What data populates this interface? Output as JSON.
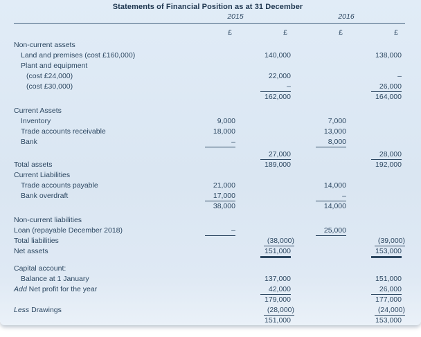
{
  "colors": {
    "panel_bg": "#dce8f4",
    "ink": "#2c4761",
    "ink_strong": "#1f3750",
    "rule": "#44617e"
  },
  "header": {
    "title": "Statements of Financial Position as at 31 December",
    "years": [
      "2015",
      "2016"
    ],
    "currency_symbol": "£",
    "column_roles": [
      "2015-inner",
      "2015-outer",
      "2016-inner",
      "2016-outer"
    ]
  },
  "table": {
    "rows": [
      {
        "t": "Non-current assets",
        "i": 0
      },
      {
        "t": "Land and premises (cost £160,000)",
        "i": 1,
        "c": [
          "",
          "140,000",
          "",
          "138,000"
        ]
      },
      {
        "t": "Plant and equipment",
        "i": 1
      },
      {
        "t": "(cost £24,000)",
        "i": 2,
        "c": [
          "",
          "22,000",
          "",
          "–"
        ]
      },
      {
        "t": "(cost £30,000)",
        "i": 2,
        "c": [
          "",
          "–",
          "",
          "26,000"
        ],
        "u": [
          "",
          "s",
          "",
          "s"
        ]
      },
      {
        "t": "",
        "c": [
          "",
          "162,000",
          "",
          "164,000"
        ]
      },
      {
        "t": "Current Assets",
        "i": 0,
        "gap": "sm"
      },
      {
        "t": "Inventory",
        "i": 1,
        "c": [
          "9,000",
          "",
          "7,000",
          ""
        ]
      },
      {
        "t": "Trade accounts receivable",
        "i": 1,
        "c": [
          "18,000",
          "",
          "13,000",
          ""
        ]
      },
      {
        "t": "Bank",
        "i": 1,
        "c": [
          "–",
          "",
          "8,000",
          ""
        ],
        "u": [
          "s",
          "",
          "s",
          ""
        ]
      },
      {
        "t": "",
        "c": [
          "",
          "27,000",
          "",
          "28,000"
        ],
        "u": [
          "",
          "s",
          "",
          "s"
        ],
        "gap": "xs"
      },
      {
        "t": "Total assets",
        "i": 0,
        "c": [
          "",
          "189,000",
          "",
          "192,000"
        ]
      },
      {
        "t": "Current Liabilities",
        "i": 0
      },
      {
        "t": "Trade accounts payable",
        "i": 1,
        "c": [
          "21,000",
          "",
          "14,000",
          ""
        ]
      },
      {
        "t": "Bank overdraft",
        "i": 1,
        "c": [
          "17,000",
          "",
          "–",
          ""
        ],
        "u": [
          "s",
          "",
          "s",
          ""
        ]
      },
      {
        "t": "",
        "c": [
          "38,000",
          "",
          "14,000",
          ""
        ]
      },
      {
        "t": "Non-current liabilities",
        "i": 0,
        "gap": "sm"
      },
      {
        "t": "Loan (repayable December 2018)",
        "i": 0,
        "c": [
          "–",
          "",
          "25,000",
          ""
        ],
        "u": [
          "s",
          "",
          "s",
          ""
        ]
      },
      {
        "t": "Total liabilities",
        "i": 0,
        "c": [
          "",
          "(38,000)",
          "",
          "(39,000)"
        ],
        "u": [
          "",
          "s",
          "",
          "s"
        ]
      },
      {
        "t": "Net assets",
        "i": 0,
        "c": [
          "",
          "151,000",
          "",
          "153,000"
        ],
        "u": [
          "",
          "d",
          "",
          "d"
        ]
      },
      {
        "t": "Capital account:",
        "i": 0,
        "gap": "md"
      },
      {
        "t": "Balance at 1 January",
        "i": 1,
        "c": [
          "",
          "137,000",
          "",
          "151,000"
        ]
      },
      {
        "pre": "Add",
        "t": " Net profit for the year",
        "i": 0,
        "c": [
          "",
          "42,000",
          "",
          "26,000"
        ],
        "u": [
          "",
          "s",
          "",
          "s"
        ]
      },
      {
        "t": "",
        "c": [
          "",
          "179,000",
          "",
          "177,000"
        ]
      },
      {
        "pre": "Less",
        "t": " Drawings",
        "i": 0,
        "c": [
          "",
          "(28,000)",
          "",
          "(24,000)"
        ],
        "u": [
          "",
          "s",
          "",
          "s"
        ]
      },
      {
        "t": "",
        "c": [
          "",
          "151,000",
          "",
          "153,000"
        ],
        "u": [
          "",
          "d",
          "",
          "d"
        ]
      }
    ]
  }
}
